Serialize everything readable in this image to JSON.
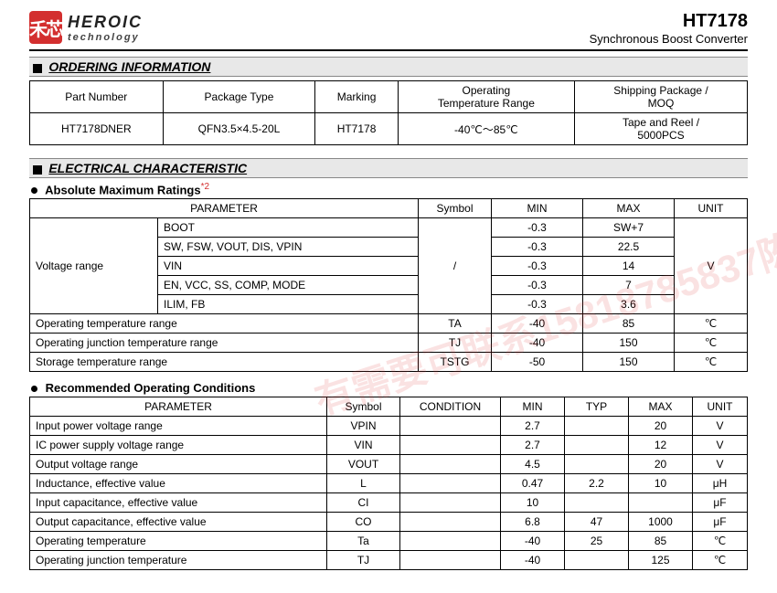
{
  "header": {
    "brand_name": "HEROIC",
    "brand_sub": "technology",
    "part": "HT7178",
    "part_desc": "Synchronous Boost Converter",
    "logo_text": "禾芯"
  },
  "watermark": "有需要可联系15818785837陈",
  "sections": {
    "ordering": "ORDERING INFORMATION",
    "electrical": "ELECTRICAL CHARACTERISTIC"
  },
  "sub": {
    "abs": "Absolute Maximum Ratings",
    "abs_sup": "*2",
    "rec": "Recommended Operating Conditions"
  },
  "ordering": {
    "headers": [
      "Part Number",
      "Package Type",
      "Marking",
      "Operating\nTemperature Range",
      "Shipping Package /\nMOQ"
    ],
    "row": [
      "HT7178DNER",
      "QFN3.5×4.5-20L",
      "HT7178",
      "-40℃～85℃",
      "Tape and Reel /\n5000PCS"
    ]
  },
  "abs": {
    "headers": [
      "PARAMETER",
      "Symbol",
      "MIN",
      "MAX",
      "UNIT"
    ],
    "voltage_label": "Voltage range",
    "voltage_rows": [
      {
        "p": "BOOT",
        "min": "-0.3",
        "max": "SW+7"
      },
      {
        "p": "SW, FSW, VOUT, DIS, VPIN",
        "min": "-0.3",
        "max": "22.5"
      },
      {
        "p": "VIN",
        "min": "-0.3",
        "max": "14"
      },
      {
        "p": "EN, VCC, SS, COMP, MODE",
        "min": "-0.3",
        "max": "7"
      },
      {
        "p": "ILIM, FB",
        "min": "-0.3",
        "max": "3.6"
      }
    ],
    "voltage_symbol": "/",
    "voltage_unit": "V",
    "other_rows": [
      {
        "p": "Operating temperature range",
        "s": "TA",
        "min": "-40",
        "max": "85",
        "u": "℃"
      },
      {
        "p": "Operating junction temperature range",
        "s": "TJ",
        "min": "-40",
        "max": "150",
        "u": "℃"
      },
      {
        "p": "Storage temperature range",
        "s": "TSTG",
        "min": "-50",
        "max": "150",
        "u": "℃"
      }
    ]
  },
  "rec": {
    "headers": [
      "PARAMETER",
      "Symbol",
      "CONDITION",
      "MIN",
      "TYP",
      "MAX",
      "UNIT"
    ],
    "rows": [
      {
        "p": "Input power voltage range",
        "s": "VPIN",
        "c": "",
        "min": "2.7",
        "typ": "",
        "max": "20",
        "u": "V"
      },
      {
        "p": "IC power supply voltage range",
        "s": "VIN",
        "c": "",
        "min": "2.7",
        "typ": "",
        "max": "12",
        "u": "V"
      },
      {
        "p": "Output voltage range",
        "s": "VOUT",
        "c": "",
        "min": "4.5",
        "typ": "",
        "max": "20",
        "u": "V"
      },
      {
        "p": "Inductance, effective value",
        "s": "L",
        "c": "",
        "min": "0.47",
        "typ": "2.2",
        "max": "10",
        "u": "μH"
      },
      {
        "p": "Input capacitance, effective value",
        "s": "CI",
        "c": "",
        "min": "10",
        "typ": "",
        "max": "",
        "u": "μF"
      },
      {
        "p": "Output capacitance, effective value",
        "s": "CO",
        "c": "",
        "min": "6.8",
        "typ": "47",
        "max": "1000",
        "u": "μF"
      },
      {
        "p": "Operating temperature",
        "s": "Ta",
        "c": "",
        "min": "-40",
        "typ": "25",
        "max": "85",
        "u": "℃"
      },
      {
        "p": "Operating junction temperature",
        "s": "TJ",
        "c": "",
        "min": "-40",
        "typ": "",
        "max": "125",
        "u": "℃"
      }
    ]
  }
}
